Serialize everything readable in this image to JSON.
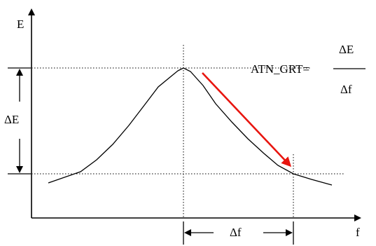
{
  "diagram": {
    "axis_y_label": "E",
    "axis_x_label": "f",
    "delta_e_label": "ΔE",
    "delta_f_label": "Δf",
    "formula": {
      "lhs": "ATN_GRT=",
      "numerator": "ΔE",
      "denominator": "Δf"
    },
    "colors": {
      "curve": "#000000",
      "arrow": "#e8150f",
      "guides": "#000000"
    }
  }
}
